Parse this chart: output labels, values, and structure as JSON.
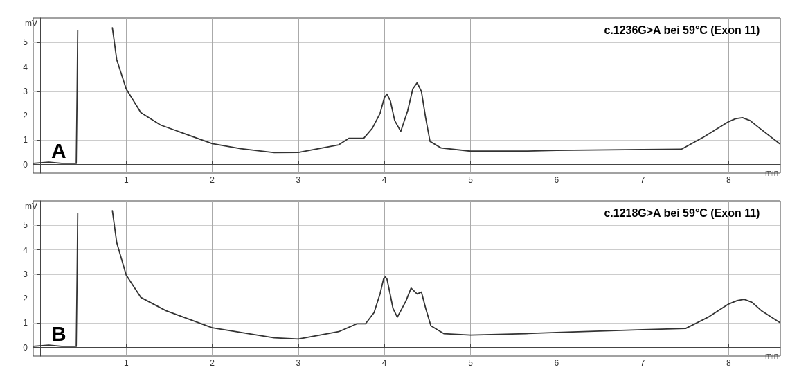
{
  "chart_data": [
    {
      "type": "line",
      "title": "c.1236G>A bei 59°C (Exon 11)",
      "xlabel": "min",
      "ylabel": "mV",
      "annotations": [
        "A"
      ],
      "xlim": [
        -0.08,
        8.6
      ],
      "xticks": [
        1,
        2,
        3,
        4,
        5,
        6,
        7,
        8
      ],
      "ylim": [
        -0.35,
        6
      ],
      "yticks": [
        0,
        1,
        2,
        3,
        4,
        5
      ],
      "grid": true,
      "marker": "none",
      "line_style": "solid",
      "series": [
        {
          "color": "#333333",
          "x": [
            -0.08,
            0.1,
            0.25,
            0.42,
            0.43,
            0.437,
            0.6,
            0.84,
            0.89,
            1.0,
            1.17,
            1.4,
            2.0,
            2.33,
            2.72,
            3.0,
            3.47,
            3.59,
            3.76,
            3.86,
            3.95,
            4.0,
            4.03,
            4.07,
            4.12,
            4.19,
            4.27,
            4.33,
            4.38,
            4.43,
            4.48,
            4.53,
            4.66,
            5.0,
            5.64,
            6.0,
            7.0,
            7.45,
            7.71,
            8.0,
            8.08,
            8.16,
            8.25,
            8.36,
            8.59
          ],
          "values": [
            0.05,
            0.1,
            0.05,
            0.05,
            3.0,
            5.5,
            null,
            5.6,
            4.3,
            3.1,
            2.13,
            1.62,
            0.86,
            0.65,
            0.49,
            0.5,
            0.81,
            1.08,
            1.08,
            1.49,
            2.1,
            2.75,
            2.89,
            2.6,
            1.8,
            1.36,
            2.2,
            3.1,
            3.35,
            3.0,
            1.9,
            0.95,
            0.68,
            0.55,
            0.55,
            0.58,
            0.62,
            0.63,
            1.13,
            1.76,
            1.88,
            1.92,
            1.8,
            1.49,
            0.86
          ]
        }
      ]
    },
    {
      "type": "line",
      "title": "c.1218G>A bei 59°C (Exon 11)",
      "xlabel": "min",
      "ylabel": "mV",
      "annotations": [
        "B"
      ],
      "xlim": [
        -0.08,
        8.6
      ],
      "xticks": [
        1,
        2,
        3,
        4,
        5,
        6,
        7,
        8
      ],
      "ylim": [
        -0.35,
        6
      ],
      "yticks": [
        0,
        1,
        2,
        3,
        4,
        5
      ],
      "grid": true,
      "marker": "none",
      "line_style": "solid",
      "series": [
        {
          "color": "#333333",
          "x": [
            -0.08,
            0.1,
            0.25,
            0.42,
            0.43,
            0.437,
            0.6,
            0.84,
            0.89,
            1.0,
            1.17,
            1.46,
            2.0,
            2.72,
            3.0,
            3.47,
            3.68,
            3.78,
            3.88,
            3.95,
            3.99,
            4.01,
            4.03,
            4.06,
            4.1,
            4.15,
            4.25,
            4.31,
            4.38,
            4.43,
            4.48,
            4.54,
            4.69,
            5.0,
            5.64,
            6.0,
            7.0,
            7.5,
            7.76,
            8.0,
            8.1,
            8.18,
            8.27,
            8.38,
            8.59
          ],
          "values": [
            0.05,
            0.1,
            0.05,
            0.05,
            3.0,
            5.5,
            null,
            5.6,
            4.3,
            2.97,
            2.05,
            1.51,
            0.81,
            0.4,
            0.35,
            0.65,
            0.97,
            0.97,
            1.43,
            2.2,
            2.8,
            2.89,
            2.8,
            2.3,
            1.6,
            1.24,
            1.9,
            2.43,
            2.19,
            2.27,
            1.6,
            0.89,
            0.57,
            0.51,
            0.57,
            0.62,
            0.73,
            0.78,
            1.24,
            1.78,
            1.92,
            1.97,
            1.85,
            1.51,
            1.03
          ]
        }
      ]
    }
  ]
}
